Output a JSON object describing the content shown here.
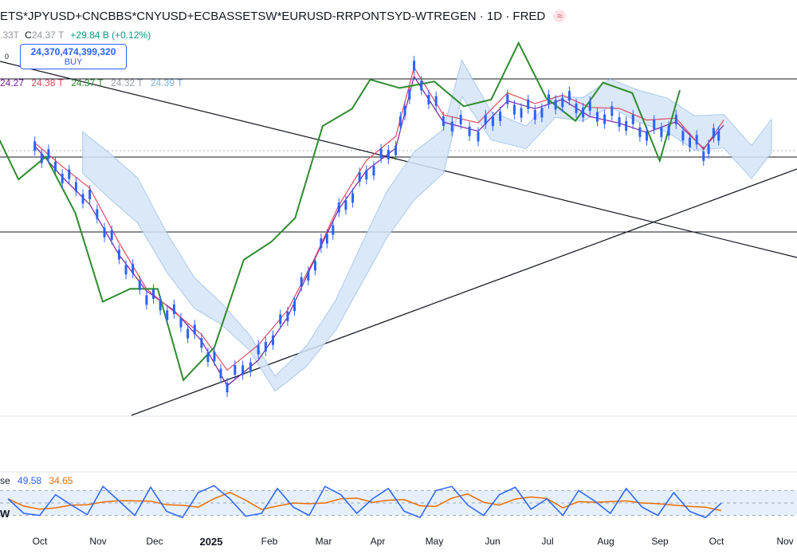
{
  "header": {
    "title": "ETS*JPYUSD+CNCBBS*CNYUSD+ECBASSETSW*EURUSD-RRPONTSYD-WTREGEN · 1D · FRED",
    "ohlc_prefix": ".33T",
    "close_label": "C",
    "close_value": "24.37 T",
    "change": "+29.84 B (+0.12%)"
  },
  "price_box": {
    "value": "24,370,474,399,320",
    "label": "BUY",
    "tick": "0"
  },
  "ma_legend": [
    {
      "text": "24.27",
      "color": "#7b1fa2"
    },
    {
      "text": "24.38 T",
      "color": "#e04a5f"
    },
    {
      "text": "24.37 T",
      "color": "#2e8b2e"
    },
    {
      "text": "24.32 T",
      "color": "#9aa0a6"
    },
    {
      "text": "24.39 T",
      "color": "#7fb1e6"
    }
  ],
  "stoch_legend": [
    {
      "text": "se",
      "color": "#131722"
    },
    {
      "text": "49.58",
      "color": "#2962ff"
    },
    {
      "text": "34.65",
      "color": "#ef6c00"
    }
  ],
  "stoch_mark": "W",
  "colors": {
    "candles": "#2962ff",
    "conversion": "#e04a5f",
    "base": "#7b1fa2",
    "lagging": "#2e8b2e",
    "cloud_bull": "#d5e4f7",
    "cloud_bear": "#dcdcdc",
    "stoch_k": "#2962ff",
    "stoch_d": "#ef6c00",
    "stoch_band": "#dbe9fb"
  },
  "chart_data": {
    "type": "line",
    "x_labels": [
      "Oct",
      "Nov",
      "Dec",
      "2025",
      "Feb",
      "Mar",
      "Apr",
      "May",
      "Jun",
      "Jul",
      "Aug",
      "Sep",
      "Oct",
      "Nov"
    ],
    "x_label_bold": "2025",
    "price_series": [
      {
        "date": "2024-09-20",
        "close": 24.34
      },
      {
        "date": "2024-10-05",
        "close": 24.3
      },
      {
        "date": "2024-10-20",
        "close": 24.26
      },
      {
        "date": "2024-11-05",
        "close": 24.18
      },
      {
        "date": "2024-11-20",
        "close": 24.12
      },
      {
        "date": "2024-12-05",
        "close": 24.09
      },
      {
        "date": "2024-12-20",
        "close": 24.05
      },
      {
        "date": "2025-01-03",
        "close": 23.99
      },
      {
        "date": "2025-01-20",
        "close": 24.03
      },
      {
        "date": "2025-02-05",
        "close": 24.09
      },
      {
        "date": "2025-02-20",
        "close": 24.17
      },
      {
        "date": "2025-03-05",
        "close": 24.24
      },
      {
        "date": "2025-03-20",
        "close": 24.3
      },
      {
        "date": "2025-04-05",
        "close": 24.34
      },
      {
        "date": "2025-04-15",
        "close": 24.45
      },
      {
        "date": "2025-05-01",
        "close": 24.38
      },
      {
        "date": "2025-05-20",
        "close": 24.36
      },
      {
        "date": "2025-06-05",
        "close": 24.4
      },
      {
        "date": "2025-06-20",
        "close": 24.39
      },
      {
        "date": "2025-07-05",
        "close": 24.41
      },
      {
        "date": "2025-07-20",
        "close": 24.39
      },
      {
        "date": "2025-08-05",
        "close": 24.38
      },
      {
        "date": "2025-08-20",
        "close": 24.36
      },
      {
        "date": "2025-09-05",
        "close": 24.37
      },
      {
        "date": "2025-09-20",
        "close": 24.33
      },
      {
        "date": "2025-10-01",
        "close": 24.37
      }
    ],
    "stoch_k": [
      60,
      25,
      20,
      70,
      45,
      22,
      90,
      55,
      20,
      88,
      30,
      15,
      75,
      92,
      60,
      18,
      25,
      85,
      40,
      20,
      90,
      70,
      25,
      60,
      85,
      30,
      15,
      80,
      90,
      45,
      20,
      70,
      88,
      35,
      60,
      20,
      80,
      55,
      25,
      85,
      40,
      20,
      75,
      30,
      15,
      49.58
    ],
    "stoch_bands": [
      80,
      50,
      20
    ],
    "stoch_range": [
      0,
      100
    ]
  }
}
